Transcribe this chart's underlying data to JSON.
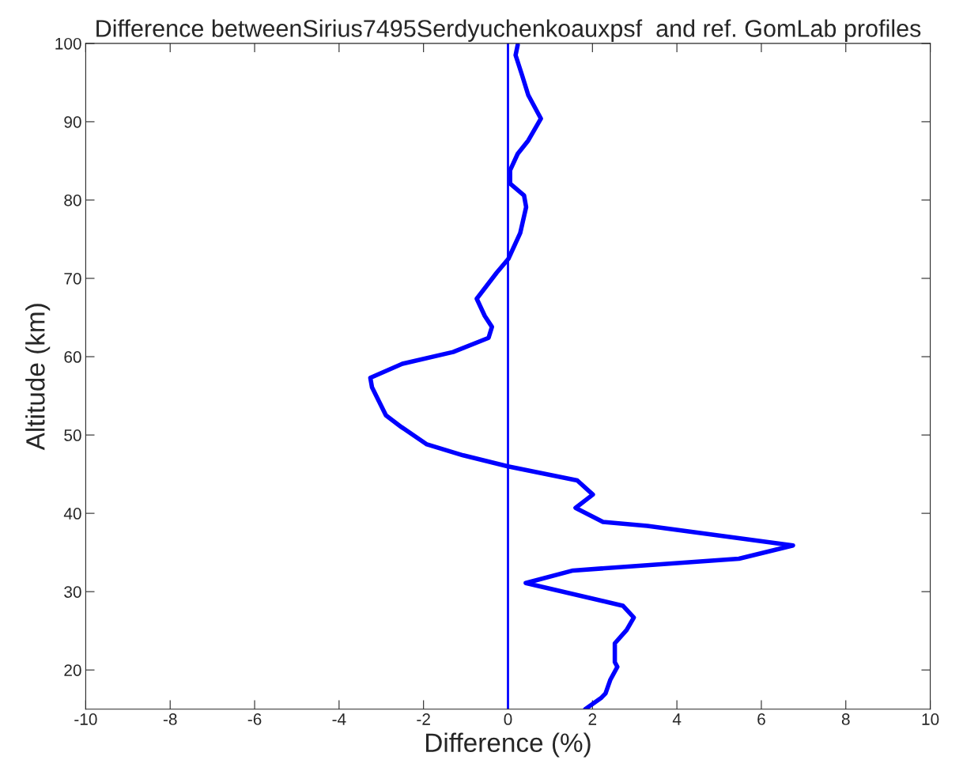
{
  "chart_data": {
    "type": "line",
    "title": "Difference betweenSirius7495Serdyuchenkoauxpsf  and ref. GomLab profiles",
    "xlabel": "Difference (%)",
    "ylabel": "Altitude (km)",
    "series": [
      {
        "color": "#0000ff",
        "x": [
          0.23,
          0.18,
          0.33,
          0.48,
          0.78,
          0.48,
          0.23,
          0.05,
          0.05,
          0.38,
          0.43,
          0.29,
          0.01,
          -0.27,
          -0.74,
          -0.55,
          -0.38,
          -0.46,
          -1.3,
          -2.5,
          -3.26,
          -3.22,
          -2.89,
          -2.52,
          -1.92,
          -1.06,
          0,
          1.64,
          2.01,
          1.6,
          2.25,
          3.3,
          6.75,
          5.47,
          1.54,
          0.42,
          2.72,
          2.98,
          2.81,
          2.53,
          2.53,
          2.59,
          2.42,
          2.31,
          2.2,
          1.83
        ],
        "values": [
          99.8,
          98.5,
          96,
          93.4,
          90.4,
          87.6,
          85.9,
          83.8,
          82.1,
          80.6,
          79.1,
          75.8,
          72.5,
          70.7,
          67.4,
          65.2,
          63.8,
          62.4,
          60.6,
          59.1,
          57.3,
          56.1,
          52.5,
          51,
          48.8,
          47.4,
          46,
          44.2,
          42.4,
          40.7,
          38.9,
          38.4,
          35.9,
          34.2,
          32.7,
          31.1,
          28.2,
          26.7,
          25.1,
          23.4,
          21,
          20.4,
          18.7,
          17,
          16.4,
          15
        ]
      }
    ],
    "ref_lines": [
      {
        "axis": "x",
        "value": 0,
        "color": "#0000ff"
      }
    ],
    "xlim": [
      -10,
      10
    ],
    "xticks": [
      -10,
      -8,
      -6,
      -4,
      -2,
      0,
      2,
      4,
      6,
      8,
      10
    ],
    "ylim": [
      15,
      100
    ],
    "yticks": [
      20,
      30,
      40,
      50,
      60,
      70,
      80,
      90,
      100
    ],
    "grid": false,
    "legend": false,
    "marker": "none",
    "line_style": "solid"
  }
}
